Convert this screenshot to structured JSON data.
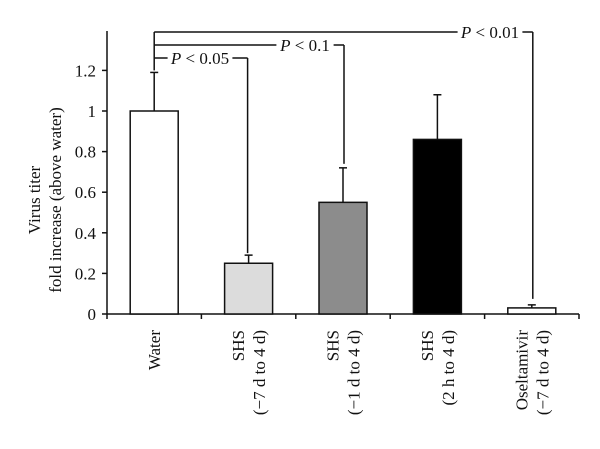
{
  "chart_data": {
    "type": "bar",
    "title": "",
    "xlabel": "",
    "ylabel": "Virus titer fold increase (above water)",
    "ylabel_lines": [
      "Virus titer",
      "fold increase (above water)"
    ],
    "ylim": [
      0,
      1.35
    ],
    "yticks": [
      "0",
      "0.2",
      "0.4",
      "0.6",
      "0.8",
      "1",
      "1.2"
    ],
    "categories": [
      "Water",
      "SHS (−7 d to 4 d)",
      "SHS (−1 d to 4 d)",
      "SHS (2 h to 4 d)",
      "Oseltamivir (−7 d to 4 d)"
    ],
    "category_lines": [
      [
        "Water"
      ],
      [
        "SHS",
        "(−7 d to 4 d)"
      ],
      [
        "SHS",
        "(−1 d to 4 d)"
      ],
      [
        "SHS",
        "(2 h to 4 d)"
      ],
      [
        "Oseltamivir",
        "(−7 d to 4 d)"
      ]
    ],
    "values": [
      1.0,
      0.25,
      0.55,
      0.86,
      0.03
    ],
    "error_upper": [
      1.19,
      0.29,
      0.72,
      1.08,
      0.045
    ],
    "bar_colors": [
      "#ffffff",
      "#dcdcdc",
      "#8c8c8c",
      "#000000",
      "#ffffff"
    ],
    "significance": [
      {
        "from": "Water",
        "to": "SHS (−7 d to 4 d)",
        "label": "P < 0.05"
      },
      {
        "from": "Water",
        "to": "SHS (−1 d to 4 d)",
        "label": "P < 0.1"
      },
      {
        "from": "Water",
        "to": "Oseltamivir (−7 d to 4 d)",
        "label": "P < 0.01"
      }
    ],
    "grid": false,
    "legend": null
  },
  "labels": {
    "y1": "Virus titer",
    "y2": "fold increase (above water)",
    "p1": "< 0.05",
    "p2": "< 0.1",
    "p3": "< 0.01",
    "p_italic": "P"
  }
}
